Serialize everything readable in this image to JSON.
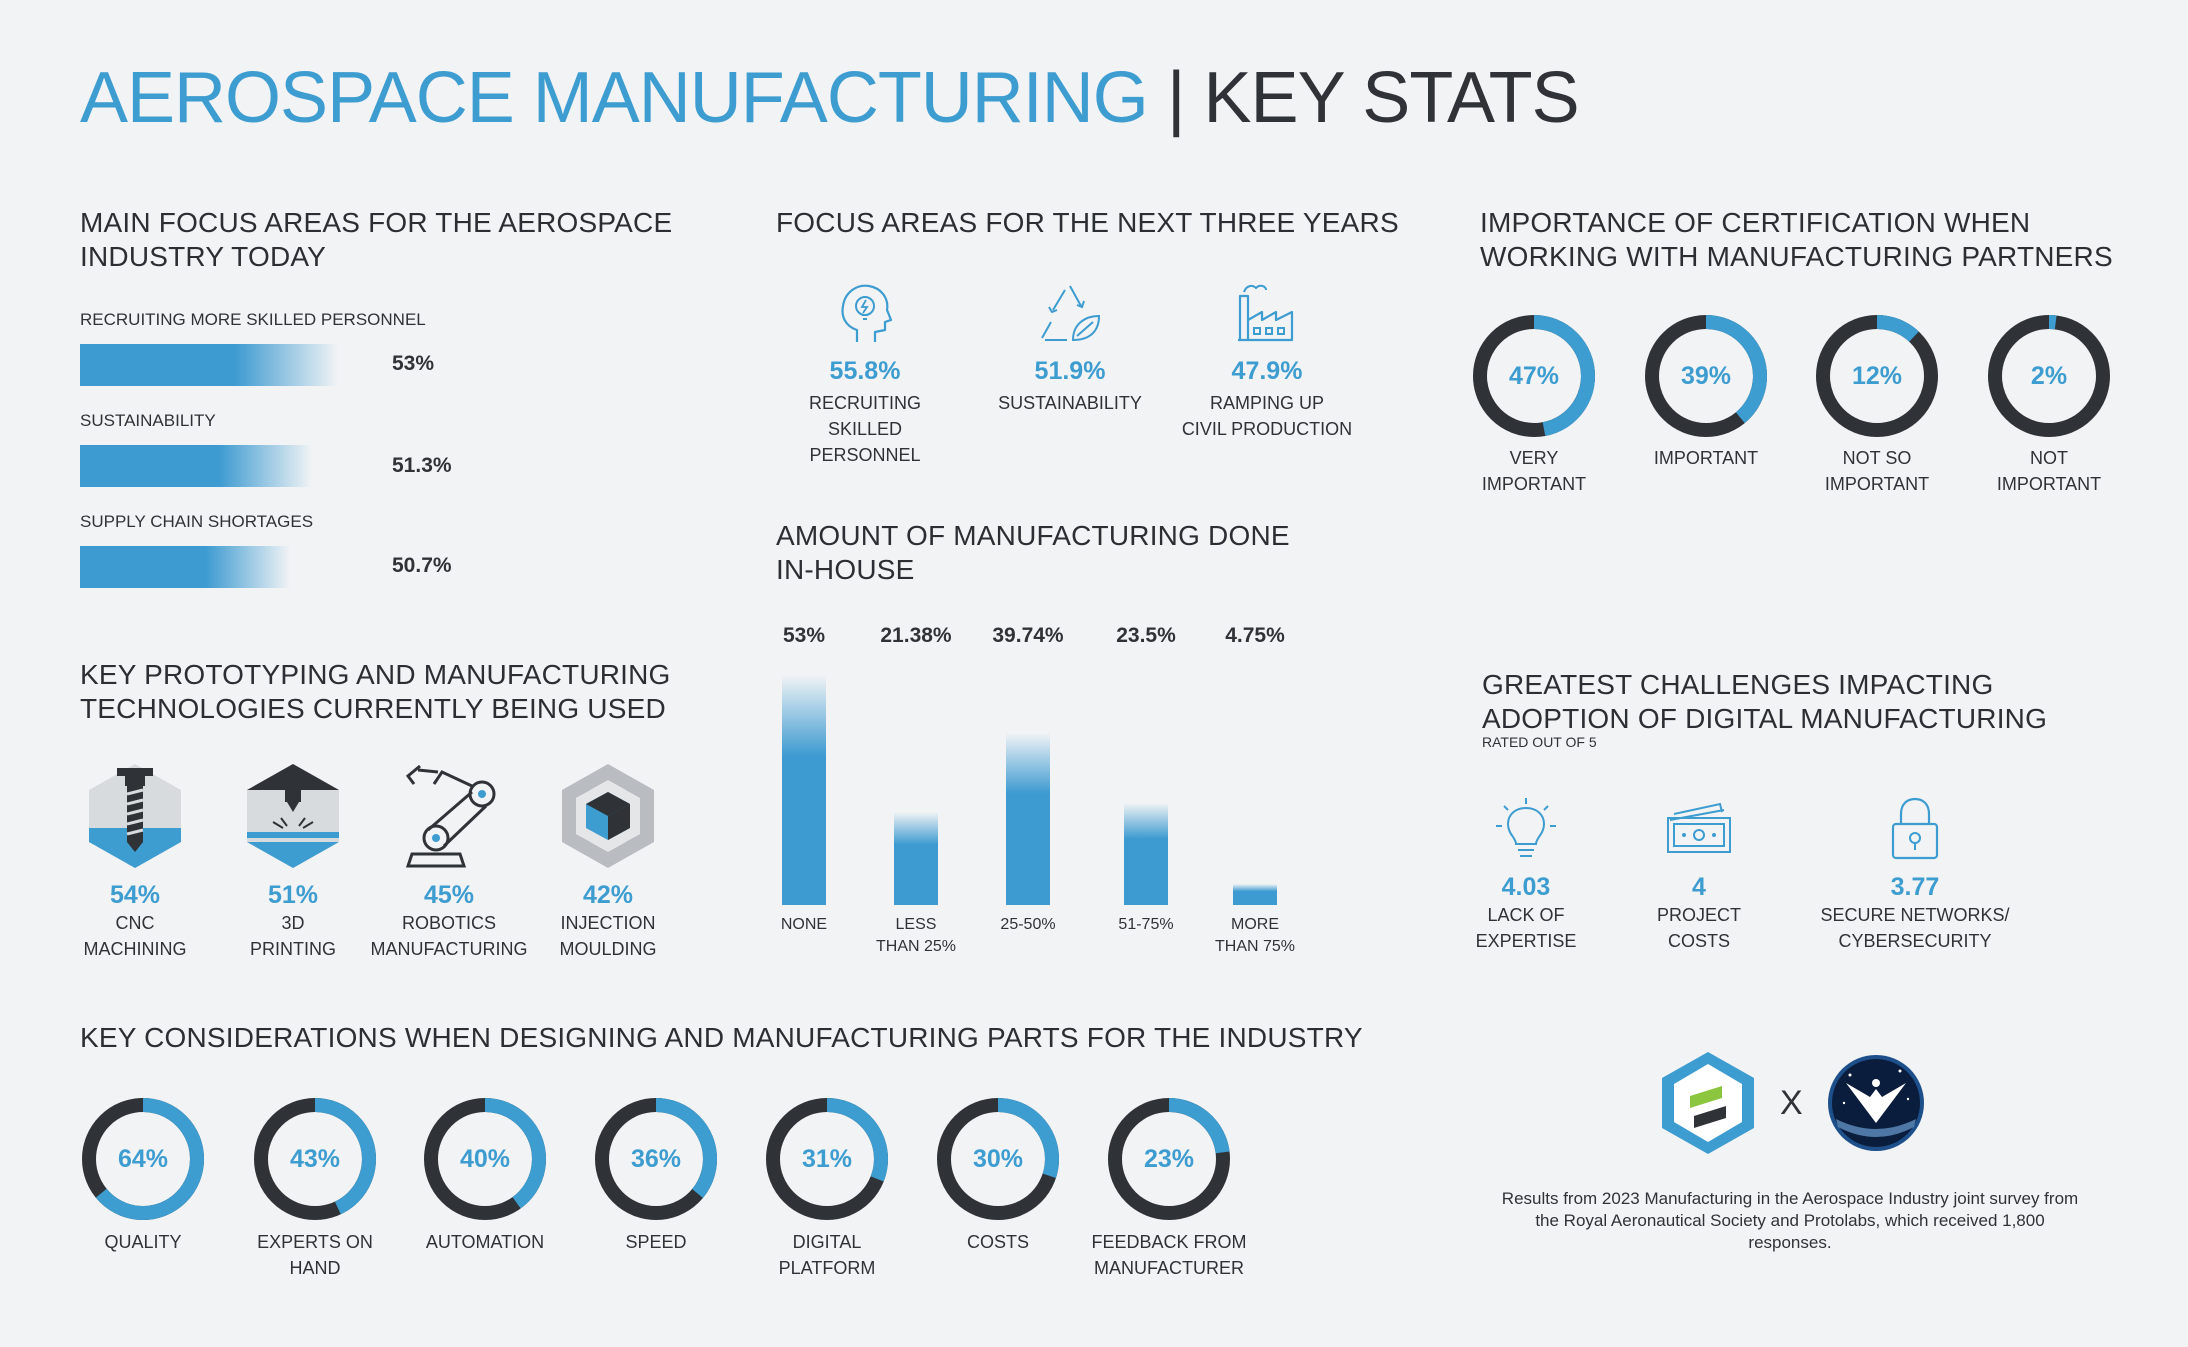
{
  "title": {
    "main": "AEROSPACE MANUFACTURING",
    "separator": "|",
    "sub": "KEY STATS"
  },
  "colors": {
    "accent": "#3d9cd0",
    "dark": "#2f3337",
    "background": "#f1f3f5"
  },
  "focus_today": {
    "heading_line1": "MAIN FOCUS AREAS FOR THE AEROSPACE",
    "heading_line2": "INDUSTRY TODAY",
    "items": [
      {
        "label": "RECRUITING MORE SKILLED PERSONNEL",
        "value_text": "53%",
        "value": 53
      },
      {
        "label": "SUSTAINABILITY",
        "value_text": "51.3%",
        "value": 51.3
      },
      {
        "label": "SUPPLY CHAIN SHORTAGES",
        "value_text": "50.7%",
        "value": 50.7
      }
    ]
  },
  "focus_next": {
    "heading": "FOCUS AREAS FOR THE NEXT THREE YEARS",
    "items": [
      {
        "icon": "lightbulb-head-icon",
        "value": "55.8%",
        "line1": "RECRUITING",
        "line2": "SKILLED PERSONNEL"
      },
      {
        "icon": "recycle-leaf-icon",
        "value": "51.9%",
        "line1": "SUSTAINABILITY",
        "line2": ""
      },
      {
        "icon": "factory-icon",
        "value": "47.9%",
        "line1": "RAMPING UP",
        "line2": "CIVIL PRODUCTION"
      }
    ]
  },
  "certification": {
    "heading_line1": "IMPORTANCE OF CERTIFICATION WHEN",
    "heading_line2": "WORKING WITH MANUFACTURING PARTNERS",
    "items": [
      {
        "value": 47,
        "text": "47%",
        "line1": "VERY",
        "line2": "IMPORTANT"
      },
      {
        "value": 39,
        "text": "39%",
        "line1": "IMPORTANT",
        "line2": ""
      },
      {
        "value": 12,
        "text": "12%",
        "line1": "NOT SO",
        "line2": "IMPORTANT"
      },
      {
        "value": 2,
        "text": "2%",
        "line1": "NOT",
        "line2": "IMPORTANT"
      }
    ]
  },
  "inhouse": {
    "heading_line1": "AMOUNT OF MANUFACTURING DONE",
    "heading_line2": "IN-HOUSE"
  },
  "technologies": {
    "heading_line1": "KEY PROTOTYPING AND MANUFACTURING",
    "heading_line2": "TECHNOLOGIES CURRENTLY BEING USED",
    "items": [
      {
        "icon": "cnc-drill-icon",
        "value": "54%",
        "line1": "CNC",
        "line2": "MACHINING"
      },
      {
        "icon": "3d-printer-icon",
        "value": "51%",
        "line1": "3D",
        "line2": "PRINTING"
      },
      {
        "icon": "robot-arm-icon",
        "value": "45%",
        "line1": "ROBOTICS",
        "line2": "MANUFACTURING"
      },
      {
        "icon": "injection-mould-icon",
        "value": "42%",
        "line1": "INJECTION",
        "line2": "MOULDING"
      }
    ]
  },
  "challenges": {
    "heading_line1": "GREATEST CHALLENGES IMPACTING",
    "heading_line2": "ADOPTION OF DIGITAL MANUFACTURING",
    "note": "RATED OUT OF 5",
    "items": [
      {
        "icon": "lightbulb-icon",
        "value": "4.03",
        "line1": "LACK OF",
        "line2": "EXPERTISE"
      },
      {
        "icon": "money-icon",
        "value": "4",
        "line1": "PROJECT",
        "line2": "COSTS"
      },
      {
        "icon": "padlock-icon",
        "value": "3.77",
        "line1": "SECURE NETWORKS/",
        "line2": "CYBERSECURITY"
      }
    ]
  },
  "considerations": {
    "heading": "KEY CONSIDERATIONS WHEN DESIGNING AND MANUFACTURING PARTS FOR THE INDUSTRY",
    "items": [
      {
        "value": 64,
        "text": "64%",
        "line1": "QUALITY",
        "line2": ""
      },
      {
        "value": 43,
        "text": "43%",
        "line1": "EXPERTS ON",
        "line2": "HAND"
      },
      {
        "value": 40,
        "text": "40%",
        "line1": "AUTOMATION",
        "line2": ""
      },
      {
        "value": 36,
        "text": "36%",
        "line1": "SPEED",
        "line2": ""
      },
      {
        "value": 31,
        "text": "31%",
        "line1": "DIGITAL",
        "line2": "PLATFORM"
      },
      {
        "value": 30,
        "text": "30%",
        "line1": "COSTS",
        "line2": ""
      },
      {
        "value": 23,
        "text": "23%",
        "line1": "FEEDBACK FROM",
        "line2": "MANUFACTURER"
      }
    ]
  },
  "footer": {
    "cross": "X",
    "line1": "Results from 2023 Manufacturing in the Aerospace Industry joint survey from",
    "line2": "the Royal Aeronautical Society and Protolabs, which received 1,800",
    "line3": "responses."
  },
  "chart_data": [
    {
      "type": "bar",
      "categories": [
        "NONE",
        "LESS THAN 25%",
        "25-50%",
        "51-75%",
        "MORE THAN 75%"
      ],
      "values": [
        53,
        21.38,
        39.74,
        23.5,
        4.75
      ],
      "value_labels": [
        "53%",
        "21.38%",
        "39.74%",
        "23.5%",
        "4.75%"
      ],
      "cat_line1": [
        "NONE",
        "LESS",
        "25-50%",
        "51-75%",
        "MORE"
      ],
      "cat_line2": [
        "",
        "THAN 25%",
        "",
        "",
        "THAN 75%"
      ]
    }
  ]
}
